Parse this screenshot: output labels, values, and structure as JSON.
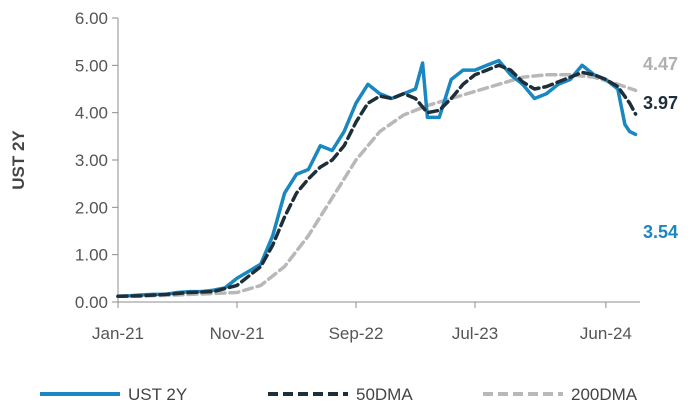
{
  "chart_data": {
    "type": "line",
    "ylabel": "UST 2Y",
    "xlabel": "",
    "ylim": [
      0,
      6
    ],
    "y_ticks": [
      "0.00",
      "1.00",
      "2.00",
      "3.00",
      "4.00",
      "5.00",
      "6.00"
    ],
    "x_ticks": [
      "Jan-21",
      "Nov-21",
      "Sep-22",
      "Jul-23",
      "Jun-24"
    ],
    "x_tick_months": [
      0,
      10,
      20,
      30,
      41
    ],
    "x_range_months": [
      0,
      45
    ],
    "grid": false,
    "legend_position": "bottom",
    "series": [
      {
        "name": "UST 2Y",
        "color": "#1b87c0",
        "dash": "solid",
        "end_label": "3.54",
        "points": [
          [
            0,
            0.12
          ],
          [
            1,
            0.13
          ],
          [
            2,
            0.15
          ],
          [
            3,
            0.16
          ],
          [
            4,
            0.16
          ],
          [
            5,
            0.2
          ],
          [
            6,
            0.22
          ],
          [
            7,
            0.22
          ],
          [
            8,
            0.25
          ],
          [
            9,
            0.3
          ],
          [
            10,
            0.5
          ],
          [
            11,
            0.65
          ],
          [
            12,
            0.8
          ],
          [
            13,
            1.4
          ],
          [
            14,
            2.3
          ],
          [
            15,
            2.7
          ],
          [
            16,
            2.8
          ],
          [
            17,
            3.3
          ],
          [
            18,
            3.2
          ],
          [
            19,
            3.6
          ],
          [
            20,
            4.2
          ],
          [
            21,
            4.6
          ],
          [
            22,
            4.4
          ],
          [
            23,
            4.3
          ],
          [
            24,
            4.4
          ],
          [
            25,
            4.5
          ],
          [
            25.6,
            5.05
          ],
          [
            26,
            3.9
          ],
          [
            27,
            3.9
          ],
          [
            28,
            4.7
          ],
          [
            29,
            4.9
          ],
          [
            30,
            4.9
          ],
          [
            31,
            5.0
          ],
          [
            32,
            5.1
          ],
          [
            33,
            4.8
          ],
          [
            34,
            4.6
          ],
          [
            35,
            4.3
          ],
          [
            36,
            4.4
          ],
          [
            37,
            4.6
          ],
          [
            38,
            4.7
          ],
          [
            39,
            5.0
          ],
          [
            40,
            4.8
          ],
          [
            41,
            4.7
          ],
          [
            42,
            4.5
          ],
          [
            42.6,
            3.75
          ],
          [
            43,
            3.6
          ],
          [
            43.5,
            3.54
          ]
        ]
      },
      {
        "name": "50DMA",
        "color": "#1f2f3a",
        "dash": "dashed",
        "end_label": "3.97",
        "points": [
          [
            0,
            0.12
          ],
          [
            2,
            0.13
          ],
          [
            4,
            0.16
          ],
          [
            6,
            0.2
          ],
          [
            8,
            0.22
          ],
          [
            10,
            0.35
          ],
          [
            11,
            0.55
          ],
          [
            12,
            0.75
          ],
          [
            13,
            1.2
          ],
          [
            14,
            1.8
          ],
          [
            15,
            2.3
          ],
          [
            16,
            2.6
          ],
          [
            17,
            2.85
          ],
          [
            18,
            3.0
          ],
          [
            19,
            3.3
          ],
          [
            20,
            3.8
          ],
          [
            21,
            4.2
          ],
          [
            22,
            4.35
          ],
          [
            23,
            4.3
          ],
          [
            24,
            4.4
          ],
          [
            25,
            4.3
          ],
          [
            26,
            4.0
          ],
          [
            27,
            4.05
          ],
          [
            28,
            4.3
          ],
          [
            29,
            4.6
          ],
          [
            30,
            4.8
          ],
          [
            31,
            4.9
          ],
          [
            32,
            5.0
          ],
          [
            33,
            4.9
          ],
          [
            34,
            4.65
          ],
          [
            35,
            4.5
          ],
          [
            36,
            4.55
          ],
          [
            37,
            4.65
          ],
          [
            38,
            4.75
          ],
          [
            39,
            4.85
          ],
          [
            40,
            4.8
          ],
          [
            41,
            4.7
          ],
          [
            42,
            4.55
          ],
          [
            43,
            4.2
          ],
          [
            43.5,
            3.97
          ]
        ]
      },
      {
        "name": "200DMA",
        "color": "#b8b8b8",
        "dash": "dashed",
        "end_label": "4.47",
        "points": [
          [
            0,
            0.12
          ],
          [
            4,
            0.14
          ],
          [
            8,
            0.18
          ],
          [
            10,
            0.2
          ],
          [
            12,
            0.35
          ],
          [
            14,
            0.75
          ],
          [
            16,
            1.4
          ],
          [
            18,
            2.2
          ],
          [
            20,
            3.0
          ],
          [
            22,
            3.6
          ],
          [
            24,
            3.95
          ],
          [
            26,
            4.15
          ],
          [
            28,
            4.3
          ],
          [
            30,
            4.45
          ],
          [
            32,
            4.6
          ],
          [
            34,
            4.75
          ],
          [
            36,
            4.8
          ],
          [
            38,
            4.8
          ],
          [
            40,
            4.75
          ],
          [
            42,
            4.6
          ],
          [
            43.5,
            4.47
          ]
        ]
      }
    ]
  }
}
